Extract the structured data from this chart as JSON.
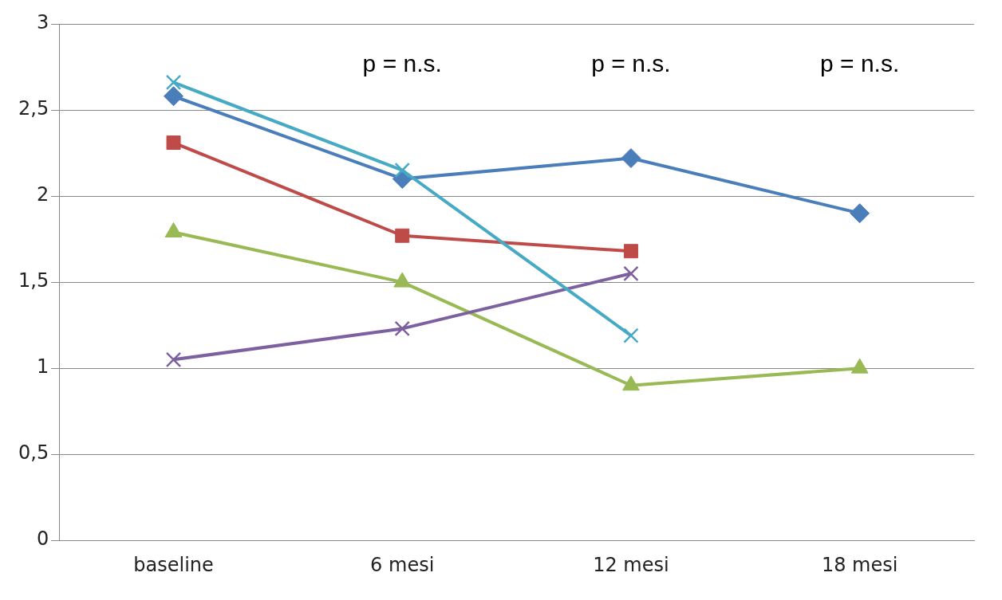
{
  "chart_data": {
    "type": "line",
    "categories": [
      "baseline",
      "6 mesi",
      "12 mesi",
      "18 mesi"
    ],
    "series": [
      {
        "color": "#4a7ebb",
        "marker": "diamond",
        "values": [
          2.58,
          2.1,
          2.22,
          1.9
        ]
      },
      {
        "color": "#be4b48",
        "marker": "square",
        "values": [
          2.31,
          1.77,
          1.68,
          null
        ]
      },
      {
        "color": "#98b954",
        "marker": "triangle",
        "values": [
          1.79,
          1.5,
          0.9,
          1.0
        ]
      },
      {
        "color": "#7d60a0",
        "marker": "cross",
        "values": [
          1.05,
          1.23,
          1.55,
          null
        ]
      },
      {
        "color": "#46aac5",
        "marker": "cross",
        "values": [
          2.66,
          2.15,
          1.19,
          null
        ]
      }
    ],
    "annotations": [
      "p = n.s.",
      "p = n.s.",
      "p = n.s."
    ],
    "ylim": [
      0,
      3
    ],
    "yticks": [
      {
        "value": 0,
        "label": "0"
      },
      {
        "value": 0.5,
        "label": "0,5"
      },
      {
        "value": 1,
        "label": "1"
      },
      {
        "value": 1.5,
        "label": "1,5"
      },
      {
        "value": 2,
        "label": "2"
      },
      {
        "value": 2.5,
        "label": "2,5"
      },
      {
        "value": 3,
        "label": "3"
      }
    ],
    "grid": "y",
    "legend": false
  }
}
